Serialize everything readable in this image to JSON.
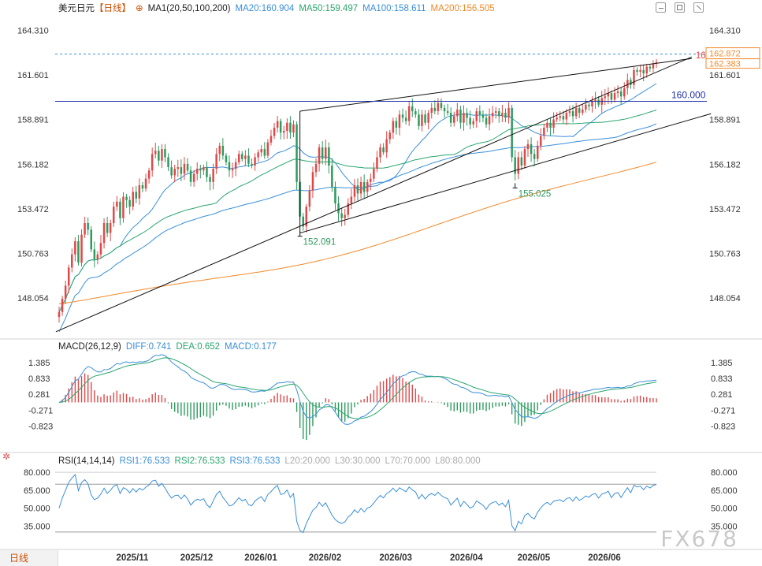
{
  "header": {
    "symbol": "美元日元",
    "period": "【日线】",
    "ma_label": "MA1(20,50,100,200)",
    "ma20": "MA20:160.904",
    "ma50": "MA50:159.497",
    "ma100": "MA100:158.611",
    "ma200": "MA200:156.505"
  },
  "macd_header": {
    "label": "MACD(26,12,9)",
    "diff": "DIFF:0.741",
    "dea": "DEA:0.652",
    "macd": "MACD:0.177"
  },
  "rsi_header": {
    "label": "RSI(14,14,14)",
    "rsi1": "RSI1:76.533",
    "rsi2": "RSI2:76.533",
    "rsi3": "RSI3:76.533",
    "l20": "L20:20.000",
    "l30": "L30:30.000",
    "l70": "L70:70.000",
    "l80": "L80:80.000"
  },
  "footer": {
    "period_button": "日线",
    "watermark": "FX678"
  },
  "colors": {
    "up": "#e04848",
    "down": "#2e9a5e",
    "ma20": "#3a8fd8",
    "ma50": "#2aa56e",
    "ma100": "#3a8fd8",
    "ma200": "#f08a2b",
    "diff": "#3a8fd8",
    "dea": "#2aa56e",
    "hline": "#1f2fa8"
  },
  "chart_data": [
    {
      "type": "candlestick",
      "title": "美元日元【日线】",
      "x_tick_labels": [
        "2025/11",
        "2025/12",
        "2026/01",
        "2026/02",
        "2026/03",
        "2026/04",
        "2026/05",
        "2026/06"
      ],
      "y_tick_labels": [
        "164.310",
        "161.601",
        "158.891",
        "156.182",
        "153.472",
        "150.763",
        "148.054"
      ],
      "y_ticks": [
        164.31,
        161.601,
        158.891,
        156.182,
        153.472,
        150.763,
        148.054
      ],
      "ylim": [
        145.8,
        165.2
      ],
      "horizontal_line": {
        "value": 160.0,
        "label": "160.000"
      },
      "annotations": [
        {
          "label": "162.411",
          "value": 162.411,
          "bar": 197,
          "kind": "high"
        },
        {
          "label": "152.091",
          "value": 152.091,
          "bar": 75,
          "kind": "low"
        },
        {
          "label": "155.025",
          "value": 155.025,
          "bar": 142,
          "kind": "low"
        }
      ],
      "price_tags": [
        "162.872",
        "162.383"
      ],
      "last_price_line": 162.872,
      "trendlines": [
        {
          "from": [
            -1,
            146.0
          ],
          "to": [
            197,
            162.7
          ]
        },
        {
          "from": [
            75,
            159.4
          ],
          "to": [
            197,
            162.6
          ]
        },
        {
          "from": [
            75,
            152.0
          ],
          "to": [
            203,
            159.25
          ]
        }
      ],
      "closes": [
        147.2,
        148.0,
        148.8,
        149.9,
        150.7,
        151.5,
        150.2,
        151.9,
        152.6,
        152.2,
        151.0,
        150.4,
        150.7,
        151.4,
        152.6,
        152.0,
        152.6,
        153.6,
        153.9,
        152.9,
        154.2,
        154.0,
        153.6,
        154.5,
        154.1,
        154.9,
        154.7,
        155.3,
        155.8,
        156.8,
        157.0,
        156.4,
        157.1,
        156.6,
        156.0,
        155.5,
        155.9,
        156.0,
        155.6,
        156.2,
        155.8,
        155.1,
        155.6,
        155.9,
        155.8,
        156.0,
        155.4,
        155.1,
        155.9,
        156.8,
        157.3,
        156.7,
        156.3,
        155.8,
        155.9,
        156.3,
        156.8,
        156.5,
        156.7,
        156.2,
        156.1,
        156.6,
        156.9,
        157.1,
        156.7,
        157.5,
        157.9,
        158.4,
        158.8,
        158.1,
        158.2,
        158.7,
        158.1,
        158.6,
        155.1,
        153.0,
        152.4,
        153.6,
        154.6,
        155.7,
        156.2,
        157.2,
        156.5,
        157.2,
        156.1,
        154.8,
        153.8,
        153.2,
        152.9,
        153.1,
        153.8,
        154.2,
        154.9,
        154.4,
        155.1,
        154.5,
        155.1,
        155.3,
        155.9,
        156.6,
        157.2,
        156.9,
        157.7,
        158.1,
        158.8,
        158.4,
        159.2,
        159.0,
        158.8,
        159.7,
        159.4,
        159.2,
        158.5,
        159.2,
        158.7,
        159.3,
        159.6,
        159.4,
        159.9,
        159.6,
        159.4,
        159.3,
        158.7,
        159.1,
        159.5,
        158.7,
        159.3,
        159.0,
        158.6,
        158.8,
        159.4,
        159.2,
        159.0,
        158.6,
        159.1,
        159.3,
        159.4,
        159.1,
        159.3,
        159.0,
        159.6,
        156.6,
        155.6,
        156.6,
        156.1,
        157.1,
        157.4,
        156.8,
        156.5,
        157.3,
        157.9,
        158.4,
        158.7,
        158.4,
        158.9,
        159.0,
        159.1,
        158.9,
        159.3,
        159.4,
        159.1,
        159.6,
        159.3,
        159.5,
        159.8,
        159.7,
        160.0,
        160.1,
        159.8,
        160.2,
        160.3,
        160.5,
        160.1,
        160.5,
        160.6,
        160.3,
        160.8,
        161.3,
        161.0,
        161.9,
        161.8,
        161.9,
        161.7,
        162.1,
        162.0,
        162.3,
        162.383
      ],
      "series": [
        {
          "name": "MA20",
          "last": 160.904
        },
        {
          "name": "MA50",
          "last": 159.497
        },
        {
          "name": "MA100",
          "last": 158.611
        },
        {
          "name": "MA200",
          "last": 156.505
        }
      ]
    },
    {
      "type": "bar+line",
      "title": "MACD(26,12,9)",
      "y_tick_labels": [
        "1.385",
        "0.833",
        "0.281",
        "-0.271",
        "-0.823"
      ],
      "y_ticks": [
        1.385,
        0.833,
        0.281,
        -0.271,
        -0.823
      ],
      "ylim": [
        -1.5,
        1.8
      ],
      "series": [
        {
          "name": "DIFF",
          "last": 0.741
        },
        {
          "name": "DEA",
          "last": 0.652
        },
        {
          "name": "MACD",
          "last": 0.177
        }
      ]
    },
    {
      "type": "line",
      "title": "RSI(14,14,14)",
      "y_tick_labels": [
        "80.000",
        "65.000",
        "50.000",
        "35.000"
      ],
      "y_ticks": [
        80,
        65,
        50,
        35
      ],
      "ylim": [
        20,
        86
      ],
      "reference_lines": [
        70,
        30
      ],
      "series": [
        {
          "name": "RSI1",
          "last": 76.533
        },
        {
          "name": "RSI2",
          "last": 76.533
        },
        {
          "name": "RSI3",
          "last": 76.533
        }
      ]
    }
  ]
}
